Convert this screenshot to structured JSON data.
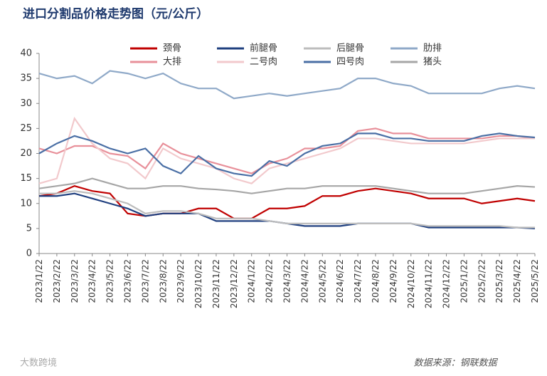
{
  "chart_data": {
    "type": "line",
    "title": "进口分割品价格走势图（元/公斤）",
    "source": "数据来源：钢联数据",
    "brand": "大数跨境",
    "categories": [
      "2023/1/22",
      "2023/2/22",
      "2023/3/22",
      "2023/4/22",
      "2023/5/22",
      "2023/6/22",
      "2023/7/22",
      "2023/8/22",
      "2023/9/22",
      "2023/10/22",
      "2023/11/22",
      "2023/12/22",
      "2024/1/22",
      "2024/2/22",
      "2024/3/22",
      "2024/4/22",
      "2024/5/22",
      "2024/6/22",
      "2024/7/22",
      "2024/8/22",
      "2024/9/22",
      "2024/10/22",
      "2024/11/22",
      "2024/12/22",
      "2025/1/22",
      "2025/2/22",
      "2025/3/22",
      "2025/4/22",
      "2025/5/22"
    ],
    "ylim": [
      0,
      40
    ],
    "yticks": [
      0,
      5,
      10,
      15,
      20,
      25,
      30,
      35,
      40
    ],
    "series": [
      {
        "name": "颈骨",
        "color": "#c00000",
        "values": [
          11.5,
          12,
          13.5,
          12.5,
          12,
          8,
          7.5,
          8,
          8,
          9,
          9,
          7,
          7,
          9,
          9,
          9.5,
          11.5,
          11.5,
          12.5,
          13,
          12.5,
          12,
          11,
          11,
          11,
          10,
          10.5,
          11,
          10.5
        ]
      },
      {
        "name": "前腿骨",
        "color": "#1f3f7f",
        "values": [
          11.5,
          11.5,
          12,
          11,
          10,
          9,
          7.5,
          8,
          8,
          8,
          6.5,
          6.5,
          6.5,
          6.5,
          6,
          5.5,
          5.5,
          5.5,
          6,
          6,
          6,
          6,
          5.2,
          5.2,
          5.2,
          5.2,
          5.2,
          5.2,
          5
        ]
      },
      {
        "name": "后腿骨",
        "color": "#bdbdbd",
        "values": [
          12,
          12,
          12.5,
          12,
          11,
          10,
          8,
          8.5,
          8.5,
          8,
          7,
          7,
          7,
          6.5,
          6,
          6,
          6,
          6,
          6,
          6,
          6,
          6,
          5.5,
          5.5,
          5.5,
          5.5,
          5.5,
          5.2,
          5.2
        ]
      },
      {
        "name": "肋排",
        "color": "#8fa9c8",
        "values": [
          36,
          35,
          35.5,
          34,
          36.5,
          36,
          35,
          36,
          34,
          33,
          33,
          31,
          31.5,
          32,
          31.5,
          32,
          32.5,
          33,
          35,
          35,
          34,
          33.5,
          32,
          32,
          32,
          32,
          33,
          33.5,
          33
        ]
      },
      {
        "name": "大排",
        "color": "#e8909a",
        "values": [
          21,
          20,
          21.5,
          21.5,
          20,
          19.5,
          17,
          22,
          20,
          19,
          18,
          17,
          16,
          18,
          19,
          21,
          21,
          21.5,
          24.5,
          25,
          24,
          24,
          23,
          23,
          23,
          23,
          23.5,
          23.5,
          23
        ]
      },
      {
        "name": "二号肉",
        "color": "#f2c9cc",
        "values": [
          14,
          15,
          27,
          22,
          19,
          18,
          15,
          21,
          19,
          18,
          17,
          15,
          14,
          17,
          18,
          19,
          20,
          21,
          23,
          23,
          22.5,
          22,
          22,
          22,
          22,
          22.5,
          23,
          23,
          23
        ]
      },
      {
        "name": "四号肉",
        "color": "#4a6fa5",
        "values": [
          20,
          22,
          23.5,
          22.5,
          21,
          20,
          21,
          17.5,
          16,
          19.5,
          17,
          16,
          15.5,
          18.5,
          17.5,
          20,
          21.5,
          22,
          24,
          24,
          23,
          23,
          22.5,
          22.5,
          22.5,
          23.5,
          24,
          23.5,
          23.2
        ]
      },
      {
        "name": "猪头",
        "color": "#a6a6a6",
        "values": [
          13,
          13.5,
          14,
          15,
          14,
          13,
          13,
          13.5,
          13.5,
          13,
          12.8,
          12.5,
          12,
          12.5,
          13,
          13,
          13.5,
          13.5,
          13.5,
          13.5,
          13,
          12.5,
          12,
          12,
          12,
          12.5,
          13,
          13.5,
          13.3
        ]
      }
    ]
  }
}
